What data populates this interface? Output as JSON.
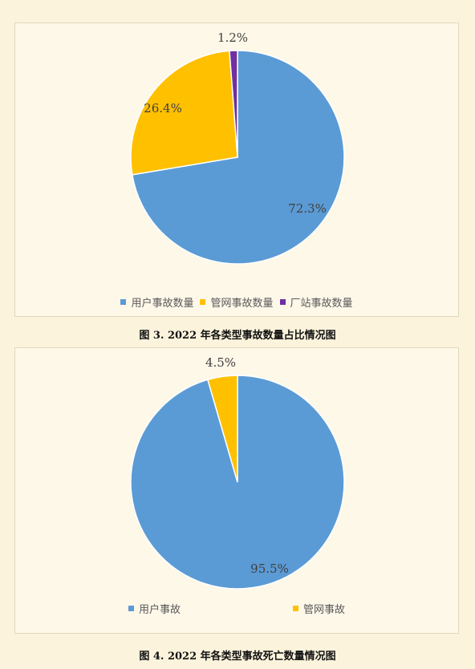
{
  "chart_data": [
    {
      "type": "pie",
      "slices": [
        {
          "label": "用户事故数量",
          "value": 72.3,
          "display": "72.3%",
          "color": "#5b9bd5"
        },
        {
          "label": "管网事故数量",
          "value": 26.4,
          "display": "26.4%",
          "color": "#ffc000"
        },
        {
          "label": "厂站事故数量",
          "value": 1.2,
          "display": "1.2%",
          "color": "#7030a0"
        }
      ],
      "legend_position": "bottom",
      "caption": "图 3. 2022 年各类型事故数量占比情况图"
    },
    {
      "type": "pie",
      "slices": [
        {
          "label": "用户事故",
          "value": 95.5,
          "display": "95.5%",
          "color": "#5b9bd5"
        },
        {
          "label": "管网事故",
          "value": 4.5,
          "display": "4.5%",
          "color": "#ffc000"
        }
      ],
      "legend_position": "bottom",
      "caption": "图 4. 2022 年各类型事故死亡数量情况图"
    }
  ]
}
